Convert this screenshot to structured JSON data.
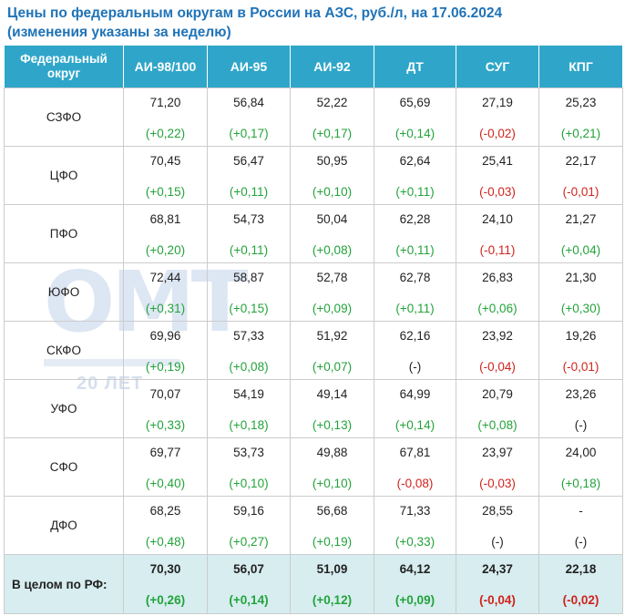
{
  "title": {
    "line1": "Цены по федеральным округам в России на АЗС, руб./л, на 17.06.2024",
    "line2": "(изменения указаны за неделю)"
  },
  "watermark": {
    "logo_text": "ОМТ",
    "years_text": "20 ЛЕТ"
  },
  "table": {
    "headers": {
      "region": "Федеральный округ",
      "ai98": "АИ-98/100",
      "ai95": "АИ-95",
      "ai92": "АИ-92",
      "dt": "ДТ",
      "sug": "СУГ",
      "kpg": "КПГ"
    },
    "rows": [
      {
        "region": "СЗФО",
        "prices": [
          "71,20",
          "56,84",
          "52,22",
          "65,69",
          "27,19",
          "25,23"
        ],
        "changes": [
          "(+0,22)",
          "(+0,17)",
          "(+0,17)",
          "(+0,14)",
          "(-0,02)",
          "(+0,21)"
        ]
      },
      {
        "region": "ЦФО",
        "prices": [
          "70,45",
          "56,47",
          "50,95",
          "62,64",
          "25,41",
          "22,17"
        ],
        "changes": [
          "(+0,15)",
          "(+0,11)",
          "(+0,10)",
          "(+0,11)",
          "(-0,03)",
          "(-0,01)"
        ]
      },
      {
        "region": "ПФО",
        "prices": [
          "68,81",
          "54,73",
          "50,04",
          "62,28",
          "24,10",
          "21,27"
        ],
        "changes": [
          "(+0,20)",
          "(+0,11)",
          "(+0,08)",
          "(+0,11)",
          "(-0,11)",
          "(+0,04)"
        ]
      },
      {
        "region": "ЮФО",
        "prices": [
          "72,44",
          "58,87",
          "52,78",
          "62,78",
          "26,83",
          "21,30"
        ],
        "changes": [
          "(+0,31)",
          "(+0,15)",
          "(+0,09)",
          "(+0,11)",
          "(+0,06)",
          "(+0,30)"
        ]
      },
      {
        "region": "СКФО",
        "prices": [
          "69,96",
          "57,33",
          "51,92",
          "62,16",
          "23,92",
          "19,26"
        ],
        "changes": [
          "(+0,19)",
          "(+0,08)",
          "(+0,07)",
          "(-)",
          "(-0,04)",
          "(-0,01)"
        ]
      },
      {
        "region": "УФО",
        "prices": [
          "70,07",
          "54,19",
          "49,14",
          "64,99",
          "20,79",
          "23,26"
        ],
        "changes": [
          "(+0,33)",
          "(+0,18)",
          "(+0,13)",
          "(+0,14)",
          "(+0,08)",
          "(-)"
        ]
      },
      {
        "region": "СФО",
        "prices": [
          "69,77",
          "53,73",
          "49,88",
          "67,81",
          "23,97",
          "24,00"
        ],
        "changes": [
          "(+0,40)",
          "(+0,10)",
          "(+0,10)",
          "(-0,08)",
          "(-0,03)",
          "(+0,18)"
        ]
      },
      {
        "region": "ДФО",
        "prices": [
          "68,25",
          "59,16",
          "56,68",
          "71,33",
          "28,55",
          "-"
        ],
        "changes": [
          "(+0,48)",
          "(+0,27)",
          "(+0,19)",
          "(+0,33)",
          "(-)",
          "(-)"
        ]
      }
    ],
    "total": {
      "region": "В целом по РФ:",
      "prices": [
        "70,30",
        "56,07",
        "51,09",
        "64,12",
        "24,37",
        "22,18"
      ],
      "changes": [
        "(+0,26)",
        "(+0,14)",
        "(+0,12)",
        "(+0,09)",
        "(-0,04)",
        "(-0,02)"
      ]
    }
  },
  "colors": {
    "title": "#1f73b7",
    "header_bg": "#2fa6c9",
    "total_bg": "#d7edf0",
    "increase": "#22a33a",
    "decrease": "#d0231c",
    "no_change": "#222222"
  }
}
